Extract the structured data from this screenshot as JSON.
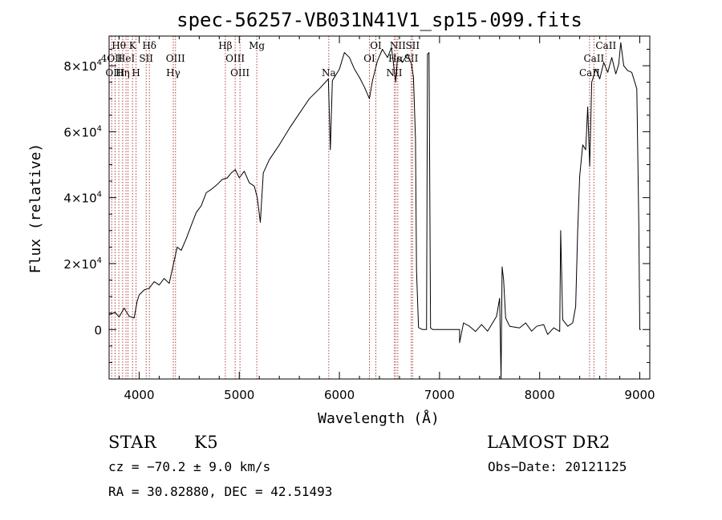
{
  "chart_data": {
    "type": "line",
    "title": "spec-56257-VB031N41V1_sp15-099.fits",
    "xlabel": "Wavelength (Å)",
    "ylabel": "Flux (relative)",
    "xlim": [
      3700,
      9100
    ],
    "ylim": [
      -15000,
      89000
    ],
    "x_ticks": [
      4000,
      5000,
      6000,
      7000,
      8000,
      9000
    ],
    "x_tick_labels": [
      "4000",
      "5000",
      "6000",
      "7000",
      "8000",
      "9000"
    ],
    "y_ticks": [
      0,
      20000,
      40000,
      60000,
      80000
    ],
    "y_tick_labels": [
      {
        "base": "0",
        "exp": ""
      },
      {
        "base": "2×10",
        "exp": "4"
      },
      {
        "base": "4×10",
        "exp": "4"
      },
      {
        "base": "6×10",
        "exp": "4"
      },
      {
        "base": "8×10",
        "exp": "4"
      }
    ],
    "grid": false,
    "series": [
      {
        "color": "#000000",
        "points": [
          [
            3700,
            4500
          ],
          [
            3760,
            5200
          ],
          [
            3800,
            3800
          ],
          [
            3850,
            6500
          ],
          [
            3900,
            4000
          ],
          [
            3950,
            3500
          ],
          [
            3980,
            8500
          ],
          [
            4000,
            10500
          ],
          [
            4050,
            12000
          ],
          [
            4100,
            12500
          ],
          [
            4150,
            14500
          ],
          [
            4200,
            13500
          ],
          [
            4250,
            15500
          ],
          [
            4300,
            14000
          ],
          [
            4340,
            19500
          ],
          [
            4380,
            25000
          ],
          [
            4420,
            24000
          ],
          [
            4470,
            27500
          ],
          [
            4520,
            31500
          ],
          [
            4570,
            35500
          ],
          [
            4620,
            37500
          ],
          [
            4670,
            41500
          ],
          [
            4720,
            42500
          ],
          [
            4780,
            44000
          ],
          [
            4830,
            45500
          ],
          [
            4880,
            46000
          ],
          [
            4920,
            47500
          ],
          [
            4960,
            48500
          ],
          [
            5000,
            46000
          ],
          [
            5050,
            48000
          ],
          [
            5100,
            44500
          ],
          [
            5150,
            43500
          ],
          [
            5180,
            40000
          ],
          [
            5210,
            32500
          ],
          [
            5240,
            47500
          ],
          [
            5300,
            51500
          ],
          [
            5400,
            56000
          ],
          [
            5500,
            61000
          ],
          [
            5600,
            65500
          ],
          [
            5700,
            70000
          ],
          [
            5800,
            73000
          ],
          [
            5890,
            76000
          ],
          [
            5910,
            54500
          ],
          [
            5930,
            75500
          ],
          [
            6000,
            79000
          ],
          [
            6050,
            84000
          ],
          [
            6100,
            82500
          ],
          [
            6150,
            79000
          ],
          [
            6200,
            76500
          ],
          [
            6250,
            73500
          ],
          [
            6300,
            70000
          ],
          [
            6330,
            75500
          ],
          [
            6380,
            81500
          ],
          [
            6430,
            85000
          ],
          [
            6480,
            82500
          ],
          [
            6520,
            85500
          ],
          [
            6563,
            75000
          ],
          [
            6580,
            82500
          ],
          [
            6630,
            81000
          ],
          [
            6680,
            83500
          ],
          [
            6720,
            80500
          ],
          [
            6740,
            76500
          ],
          [
            6760,
            58000
          ],
          [
            6770,
            18000
          ],
          [
            6790,
            600
          ],
          [
            6830,
            0
          ],
          [
            6870,
            0
          ],
          [
            6880,
            83500
          ],
          [
            6895,
            84000
          ],
          [
            6910,
            500
          ],
          [
            6930,
            0
          ],
          [
            7200,
            0
          ],
          [
            7200,
            -4000
          ],
          [
            7240,
            2000
          ],
          [
            7300,
            1000
          ],
          [
            7360,
            -600
          ],
          [
            7420,
            1500
          ],
          [
            7480,
            -500
          ],
          [
            7520,
            1500
          ],
          [
            7570,
            4000
          ],
          [
            7600,
            9500
          ],
          [
            7615,
            -15000
          ],
          [
            7625,
            19000
          ],
          [
            7640,
            15000
          ],
          [
            7660,
            3500
          ],
          [
            7700,
            1000
          ],
          [
            7800,
            500
          ],
          [
            7860,
            2000
          ],
          [
            7920,
            -500
          ],
          [
            7970,
            1000
          ],
          [
            8040,
            1500
          ],
          [
            8080,
            -1500
          ],
          [
            8140,
            500
          ],
          [
            8200,
            -600
          ],
          [
            8210,
            30000
          ],
          [
            8230,
            3000
          ],
          [
            8280,
            1000
          ],
          [
            8330,
            2000
          ],
          [
            8360,
            7000
          ],
          [
            8380,
            30000
          ],
          [
            8400,
            46500
          ],
          [
            8430,
            56000
          ],
          [
            8460,
            54500
          ],
          [
            8480,
            67500
          ],
          [
            8500,
            49500
          ],
          [
            8520,
            75000
          ],
          [
            8560,
            79000
          ],
          [
            8600,
            76000
          ],
          [
            8640,
            81000
          ],
          [
            8680,
            78000
          ],
          [
            8720,
            82500
          ],
          [
            8760,
            77500
          ],
          [
            8790,
            80500
          ],
          [
            8810,
            87000
          ],
          [
            8840,
            80000
          ],
          [
            8880,
            78500
          ],
          [
            8920,
            78000
          ],
          [
            8950,
            75000
          ],
          [
            8970,
            73000
          ],
          [
            8990,
            32000
          ],
          [
            9000,
            0
          ],
          [
            9010,
            0
          ]
        ]
      }
    ],
    "line_markers": {
      "color": "#b04040",
      "lines": [
        {
          "x": 3797,
          "label": "Hθ",
          "row": 0
        },
        {
          "x": 3726,
          "label": "4OII",
          "row": 1
        },
        {
          "x": 3760,
          "label": "OIII",
          "row": 2
        },
        {
          "x": 3835,
          "label": "Hη",
          "row": 2
        },
        {
          "x": 3869,
          "label": "HeI",
          "row": 1
        },
        {
          "x": 3889,
          "label": "",
          "row": 0
        },
        {
          "x": 3934,
          "label": "K",
          "row": 0
        },
        {
          "x": 3969,
          "label": "H",
          "row": 2
        },
        {
          "x": 4070,
          "label": "SII",
          "row": 1
        },
        {
          "x": 4102,
          "label": "Hδ",
          "row": 0
        },
        {
          "x": 4341,
          "label": "Hγ",
          "row": 2
        },
        {
          "x": 4363,
          "label": "OIII",
          "row": 1
        },
        {
          "x": 4861,
          "label": "Hβ",
          "row": 0
        },
        {
          "x": 4959,
          "label": "OIII",
          "row": 1
        },
        {
          "x": 5007,
          "label": "OIII",
          "row": 2
        },
        {
          "x": 5175,
          "label": "Mg",
          "row": 0
        },
        {
          "x": 5894,
          "label": "Na",
          "row": 2
        },
        {
          "x": 6300,
          "label": "OI",
          "row": 1
        },
        {
          "x": 6364,
          "label": "OI",
          "row": 0
        },
        {
          "x": 6548,
          "label": "NII",
          "row": 2
        },
        {
          "x": 6563,
          "label": "Hα",
          "row": 1
        },
        {
          "x": 6583,
          "label": "NII",
          "row": 0
        },
        {
          "x": 6717,
          "label": "SII",
          "row": 1
        },
        {
          "x": 6731,
          "label": "SII",
          "row": 0
        },
        {
          "x": 8498,
          "label": "CaII",
          "row": 2
        },
        {
          "x": 8542,
          "label": "CaII",
          "row": 1
        },
        {
          "x": 8662,
          "label": "CaII",
          "row": 0
        }
      ]
    }
  },
  "info": {
    "class": "STAR",
    "subclass": "K5",
    "survey": "LAMOST DR2",
    "cz": "cz = −70.2 ± 9.0 km/s",
    "obs_date": "Obs−Date: 20121125",
    "coords": "RA =  30.82880, DEC =  42.51493"
  }
}
